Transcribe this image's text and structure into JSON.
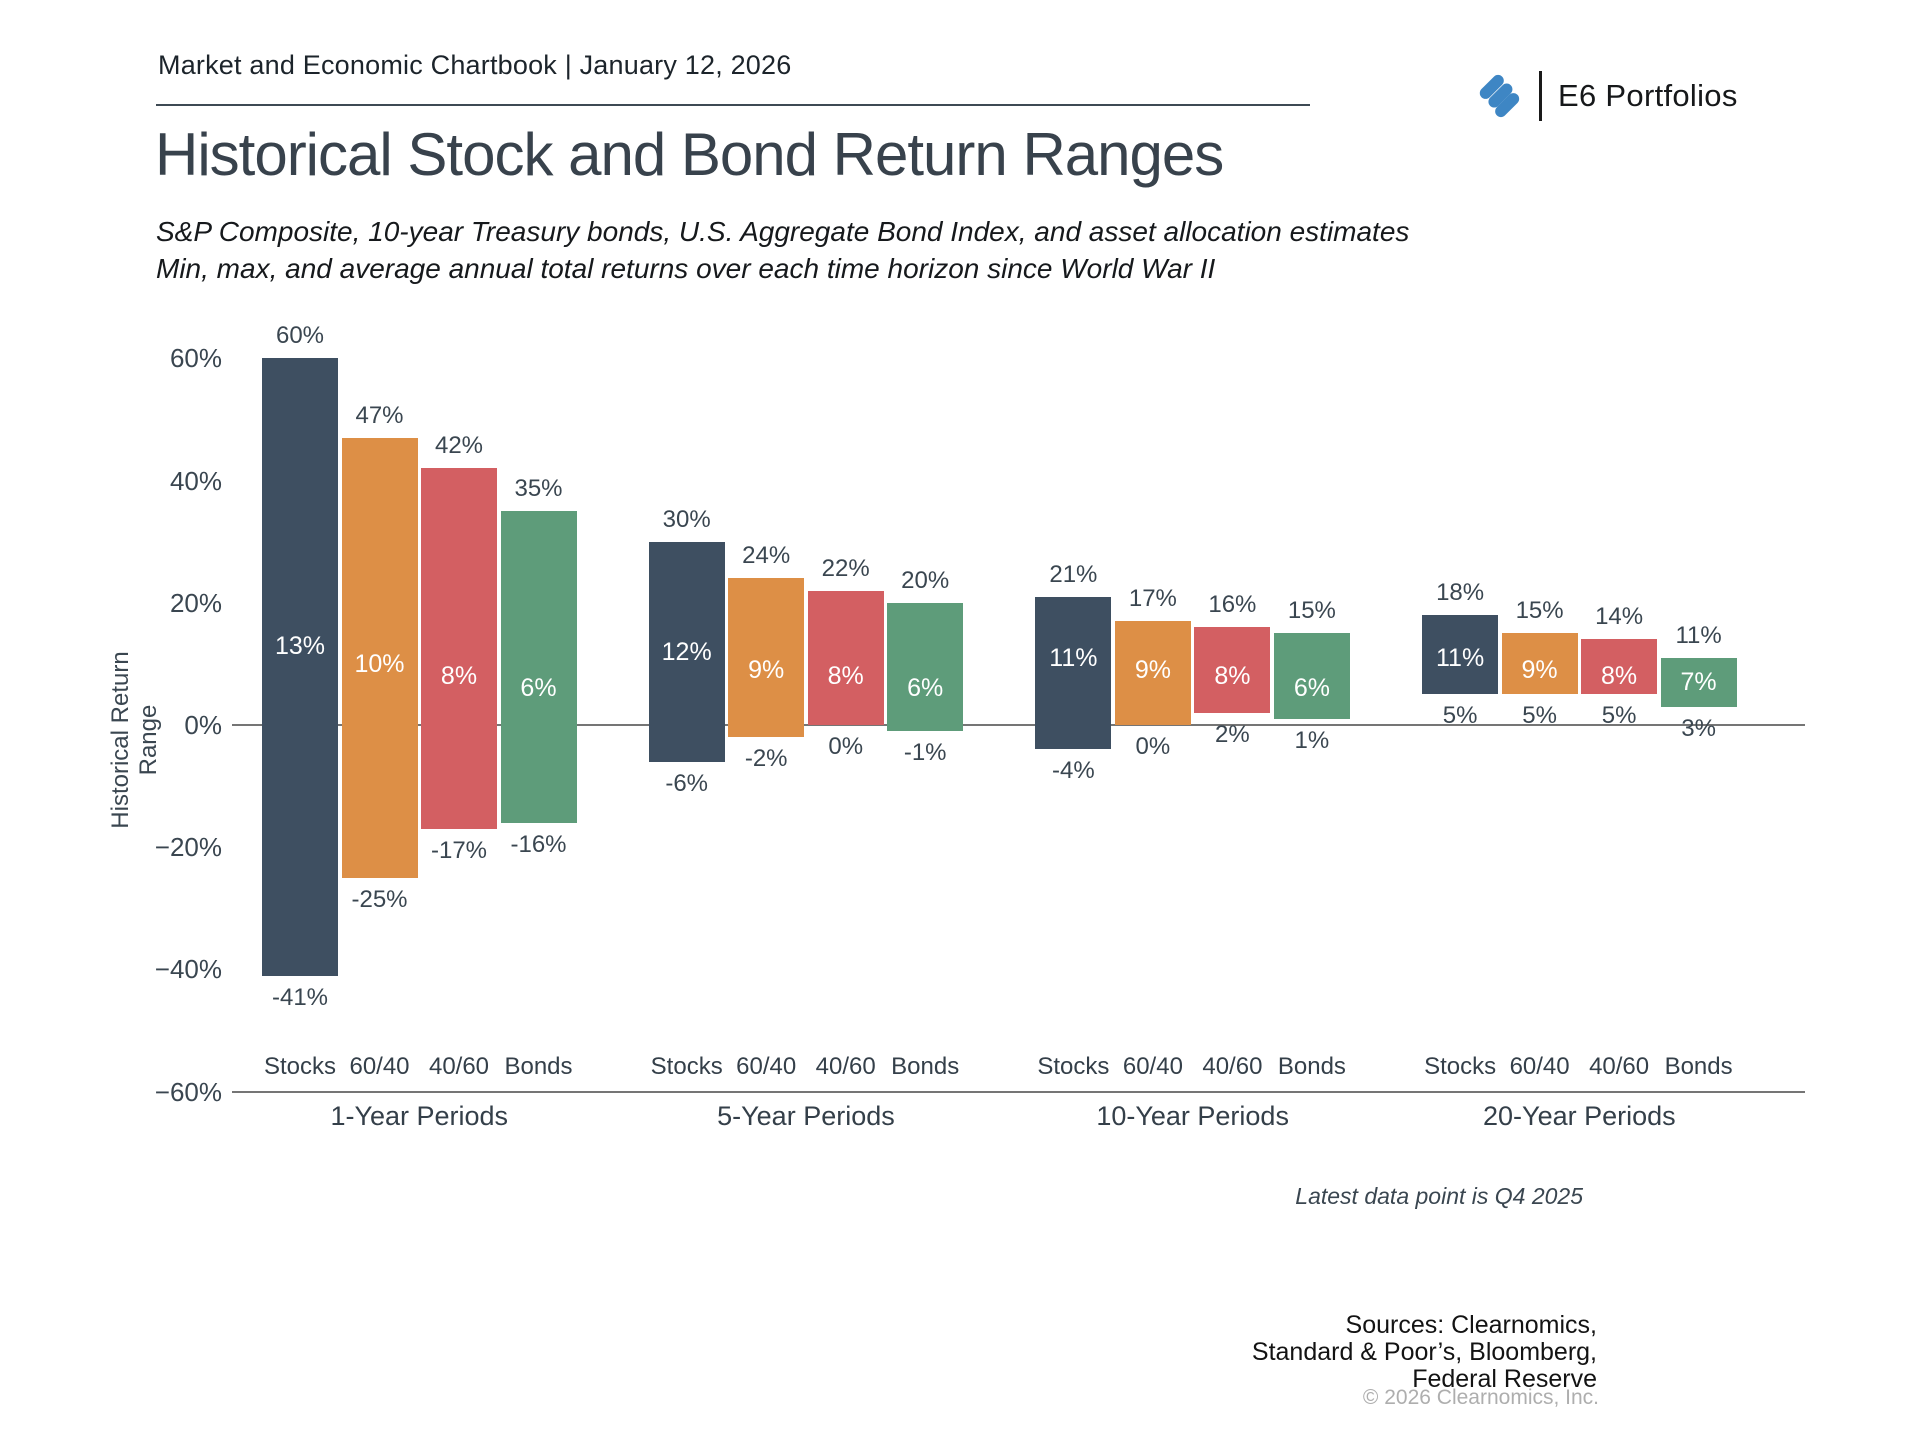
{
  "header": {
    "left": "Market and Economic Chartbook | January 12, 2026",
    "brand": "E6 Portfolios",
    "logo_color": "#3e86c4"
  },
  "title": "Historical Stock and Bond Return Ranges",
  "subtitle": {
    "line1": "S&P Composite, 10-year Treasury bonds, U.S. Aggregate Bond Index, and asset allocation estimates",
    "line2": "Min, max, and average annual total returns over each time horizon since World War II"
  },
  "chart_data": {
    "type": "bar",
    "subtype": "floating-range-min-max-avg",
    "title": "",
    "xlabel": "",
    "ylabel": "Historical Return Range",
    "ylim": [
      -60,
      60
    ],
    "yticks": [
      60,
      40,
      20,
      0,
      -20,
      -40,
      -60
    ],
    "ytick_labels": [
      "60%",
      "40%",
      "20%",
      "0%",
      "−20%",
      "−40%",
      "−60%"
    ],
    "grid": "off",
    "assets": [
      "Stocks",
      "60/40",
      "40/60",
      "Bonds"
    ],
    "asset_colors": [
      "#3e4f61",
      "#dd8f46",
      "#d35f62",
      "#5e9c7a"
    ],
    "groups": [
      {
        "label": "1-Year Periods",
        "bars": [
          {
            "asset": "Stocks",
            "max": 60,
            "avg": 13,
            "min": -41
          },
          {
            "asset": "60/40",
            "max": 47,
            "avg": 10,
            "min": -25
          },
          {
            "asset": "40/60",
            "max": 42,
            "avg": 8,
            "min": -17
          },
          {
            "asset": "Bonds",
            "max": 35,
            "avg": 6,
            "min": -16
          }
        ]
      },
      {
        "label": "5-Year Periods",
        "bars": [
          {
            "asset": "Stocks",
            "max": 30,
            "avg": 12,
            "min": -6
          },
          {
            "asset": "60/40",
            "max": 24,
            "avg": 9,
            "min": -2
          },
          {
            "asset": "40/60",
            "max": 22,
            "avg": 8,
            "min": 0
          },
          {
            "asset": "Bonds",
            "max": 20,
            "avg": 6,
            "min": -1
          }
        ]
      },
      {
        "label": "10-Year Periods",
        "bars": [
          {
            "asset": "Stocks",
            "max": 21,
            "avg": 11,
            "min": -4
          },
          {
            "asset": "60/40",
            "max": 17,
            "avg": 9,
            "min": 0
          },
          {
            "asset": "40/60",
            "max": 16,
            "avg": 8,
            "min": 2
          },
          {
            "asset": "Bonds",
            "max": 15,
            "avg": 6,
            "min": 1
          }
        ]
      },
      {
        "label": "20-Year Periods",
        "bars": [
          {
            "asset": "Stocks",
            "max": 18,
            "avg": 11,
            "min": 5
          },
          {
            "asset": "60/40",
            "max": 15,
            "avg": 9,
            "min": 5
          },
          {
            "asset": "40/60",
            "max": 14,
            "avg": 8,
            "min": 5
          },
          {
            "asset": "Bonds",
            "max": 11,
            "avg": 7,
            "min": 3
          }
        ]
      }
    ]
  },
  "footnote": "Latest data point is Q4 2025",
  "sources": {
    "lines": [
      "Sources: Clearnomics,",
      "Standard & Poor’s, Bloomberg,",
      "Federal Reserve"
    ],
    "copyright": "© 2026 Clearnomics, Inc."
  }
}
